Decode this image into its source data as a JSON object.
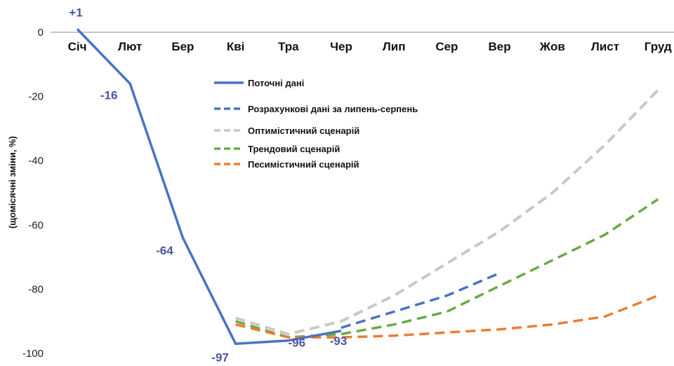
{
  "chart_data": {
    "type": "line",
    "title": "",
    "xlabel": "",
    "ylabel": "(щомісячні зміни, %)",
    "ylim": [
      -100,
      0
    ],
    "yticks": [
      0,
      -20,
      -40,
      -60,
      -80,
      -100
    ],
    "grid": false,
    "legend_position": "center",
    "categories": [
      "Січ",
      "Лют",
      "Бер",
      "Кві",
      "Тра",
      "Чер",
      "Лип",
      "Сер",
      "Вер",
      "Жов",
      "Лист",
      "Груд"
    ],
    "series": [
      {
        "name": "Поточні дані",
        "color": "#4a72c4",
        "style": "solid",
        "points": [
          [
            1,
            1
          ],
          [
            2,
            -16
          ],
          [
            3,
            -64
          ],
          [
            4,
            -97
          ],
          [
            5,
            -96
          ],
          [
            6,
            -93
          ]
        ],
        "labels": [
          "+1",
          "-16",
          "-64",
          "-97",
          "-96",
          "-93"
        ]
      },
      {
        "name": "Розрахункові дані за липень-серпень",
        "color": "#4a72c4",
        "style": "dashed",
        "points": [
          [
            6,
            -92
          ],
          [
            7,
            -87
          ],
          [
            8,
            -82
          ],
          [
            9,
            -75
          ]
        ]
      },
      {
        "name": "Оптимістичний сценарій",
        "color": "#c8c8c8",
        "style": "dashed",
        "points": [
          [
            4,
            -89
          ],
          [
            5,
            -94
          ],
          [
            6,
            -90
          ],
          [
            7,
            -82
          ],
          [
            8,
            -72
          ],
          [
            9,
            -62
          ],
          [
            10,
            -50
          ],
          [
            11,
            -35
          ],
          [
            12,
            -18
          ]
        ]
      },
      {
        "name": "Трендовий сценарій",
        "color": "#6aaa45",
        "style": "dashed",
        "points": [
          [
            4,
            -90
          ],
          [
            5,
            -95
          ],
          [
            6,
            -94
          ],
          [
            7,
            -91
          ],
          [
            8,
            -87
          ],
          [
            9,
            -79
          ],
          [
            10,
            -71
          ],
          [
            11,
            -63
          ],
          [
            12,
            -52
          ]
        ]
      },
      {
        "name": "Песимістичний сценарій",
        "color": "#ed7d31",
        "style": "dashed",
        "points": [
          [
            4,
            -91
          ],
          [
            5,
            -95
          ],
          [
            6,
            -95
          ],
          [
            7,
            -94.5
          ],
          [
            8,
            -93.5
          ],
          [
            9,
            -92.5
          ],
          [
            10,
            -91
          ],
          [
            11,
            -88.5
          ],
          [
            12,
            -82
          ]
        ]
      }
    ]
  }
}
